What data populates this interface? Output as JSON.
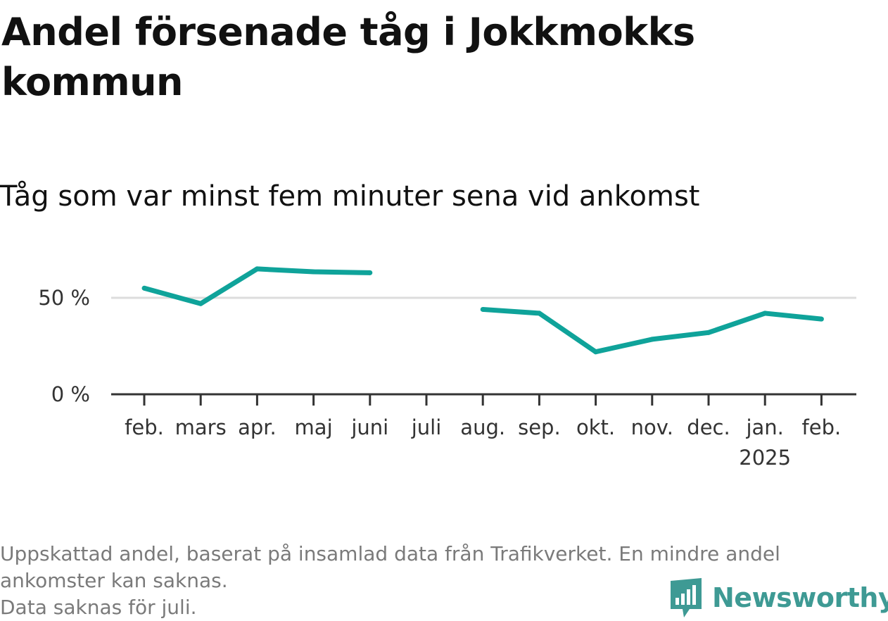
{
  "header": {
    "title": "Andel försenade tåg i Jokkmokks kommun",
    "subtitle": "Tåg som var minst fem minuter sena vid ankomst"
  },
  "chart_data": {
    "type": "line",
    "title": "Andel försenade tåg i Jokkmokks kommun",
    "subtitle": "Tåg som var minst fem minuter sena vid ankomst",
    "categories": [
      "feb.",
      "mars",
      "apr.",
      "maj",
      "juni",
      "juli",
      "aug.",
      "sep.",
      "okt.",
      "nov.",
      "dec.",
      "jan.",
      "feb."
    ],
    "year_labels": [
      "",
      "",
      "",
      "",
      "",
      "",
      "",
      "",
      "",
      "",
      "",
      "2025",
      ""
    ],
    "series": [
      {
        "values": [
          55,
          47,
          65,
          63.5,
          63,
          null,
          44,
          42,
          22,
          28.5,
          32,
          42,
          39
        ]
      }
    ],
    "y_ticks": [
      {
        "value": 0,
        "label": "0 %"
      },
      {
        "value": 50,
        "label": "50 %"
      }
    ],
    "ylim": [
      0,
      70
    ],
    "grid": true,
    "colors": {
      "line": "#0fa39a",
      "grid": "#dddddd",
      "axis": "#333333"
    }
  },
  "footer": {
    "note_lines": [
      "Uppskattad andel, baserat på insamlad data från Trafikverket. En mindre andel",
      "ankomster kan saknas.",
      "Data saknas för juli."
    ],
    "brand": "Newsworthy",
    "brand_color": "#3e9a94"
  }
}
